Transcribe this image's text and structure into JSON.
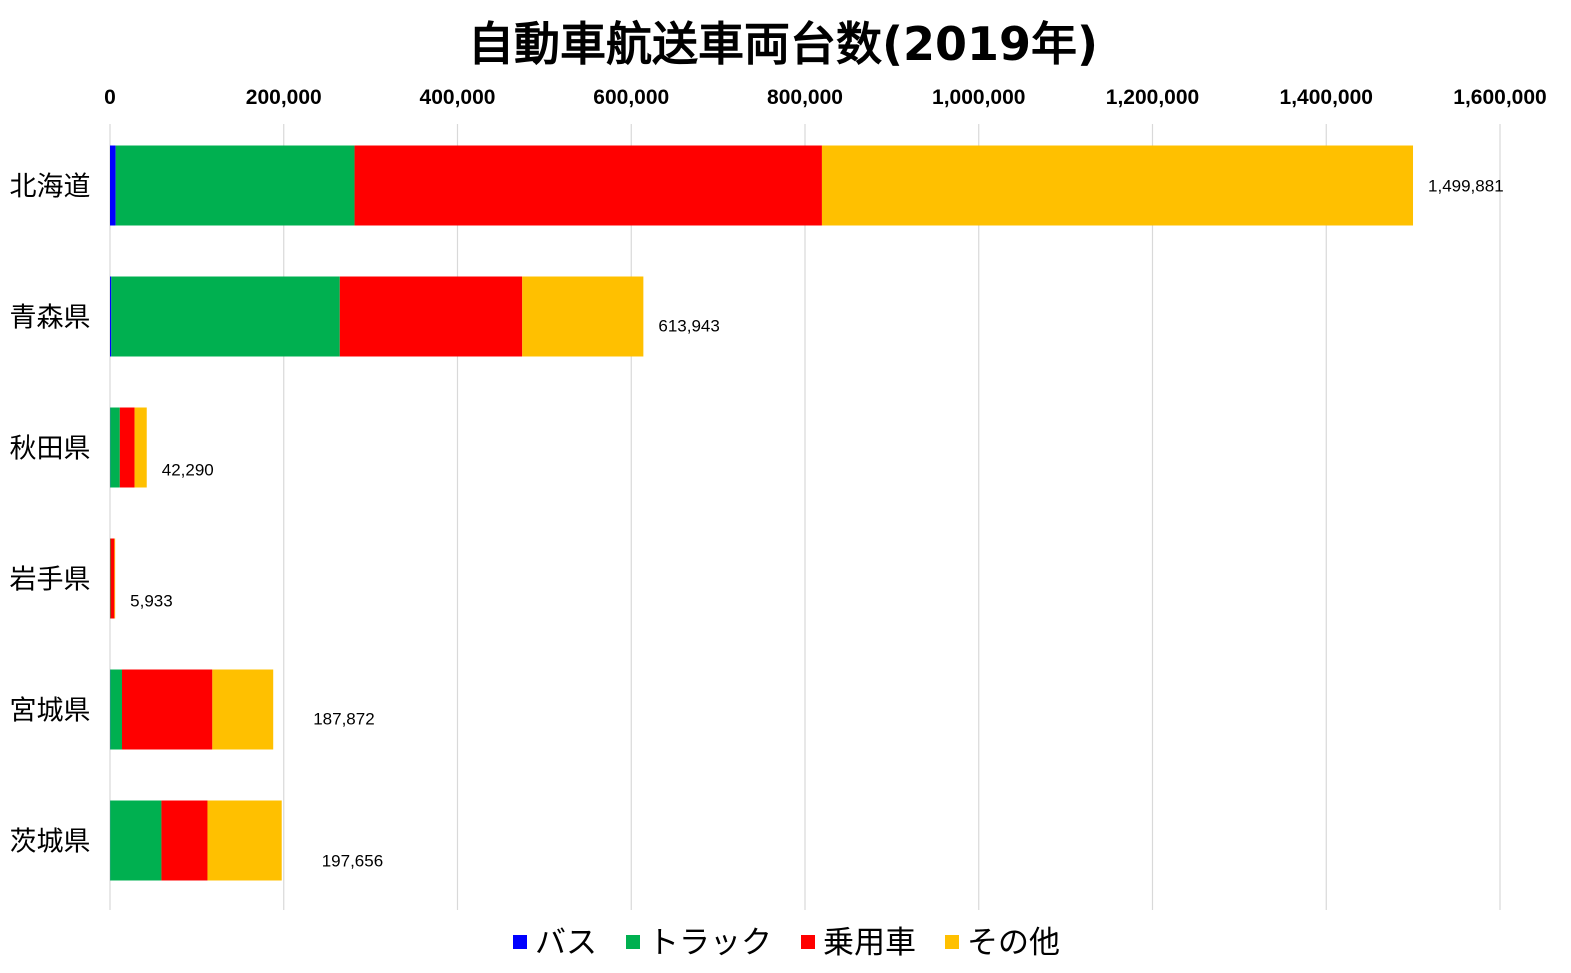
{
  "chart_data": {
    "type": "bar",
    "orientation": "horizontal",
    "stacked": true,
    "title": "自動車航送車両台数(2019年)",
    "xlabel": "",
    "ylabel": "",
    "xlim": [
      0,
      1600000
    ],
    "x_ticks": [
      {
        "value": 0,
        "label": "0"
      },
      {
        "value": 200000,
        "label": "200,000"
      },
      {
        "value": 400000,
        "label": "400,000"
      },
      {
        "value": 600000,
        "label": "600,000"
      },
      {
        "value": 800000,
        "label": "800,000"
      },
      {
        "value": 1000000,
        "label": "1,000,000"
      },
      {
        "value": 1200000,
        "label": "1,200,000"
      },
      {
        "value": 1400000,
        "label": "1,400,000"
      },
      {
        "value": 1600000,
        "label": "1,600,000"
      }
    ],
    "x_axis_position": "top",
    "grid": true,
    "legend_position": "bottom",
    "categories": [
      "北海道",
      "青森県",
      "秋田県",
      "岩手県",
      "宮城県",
      "茨城県"
    ],
    "series": [
      {
        "name": "バス",
        "color": "#0000ff",
        "values": [
          6500,
          1500,
          300,
          50,
          300,
          200
        ]
      },
      {
        "name": "トラック",
        "color": "#00b050",
        "values": [
          275000,
          263000,
          11000,
          500,
          13500,
          59000
        ]
      },
      {
        "name": "乗用車",
        "color": "#ff0000",
        "values": [
          538000,
          210000,
          17000,
          4500,
          104000,
          53000
        ]
      },
      {
        "name": "その他",
        "color": "#ffc000",
        "values": [
          680381,
          139443,
          13990,
          883,
          70072,
          85456
        ]
      }
    ],
    "totals": [
      {
        "value": 1499881,
        "label": "1,499,881"
      },
      {
        "value": 613943,
        "label": "613,943"
      },
      {
        "value": 42290,
        "label": "42,290"
      },
      {
        "value": 5933,
        "label": "5,933"
      },
      {
        "value": 187872,
        "label": "187,872"
      },
      {
        "value": 197656,
        "label": "197,656"
      }
    ]
  }
}
